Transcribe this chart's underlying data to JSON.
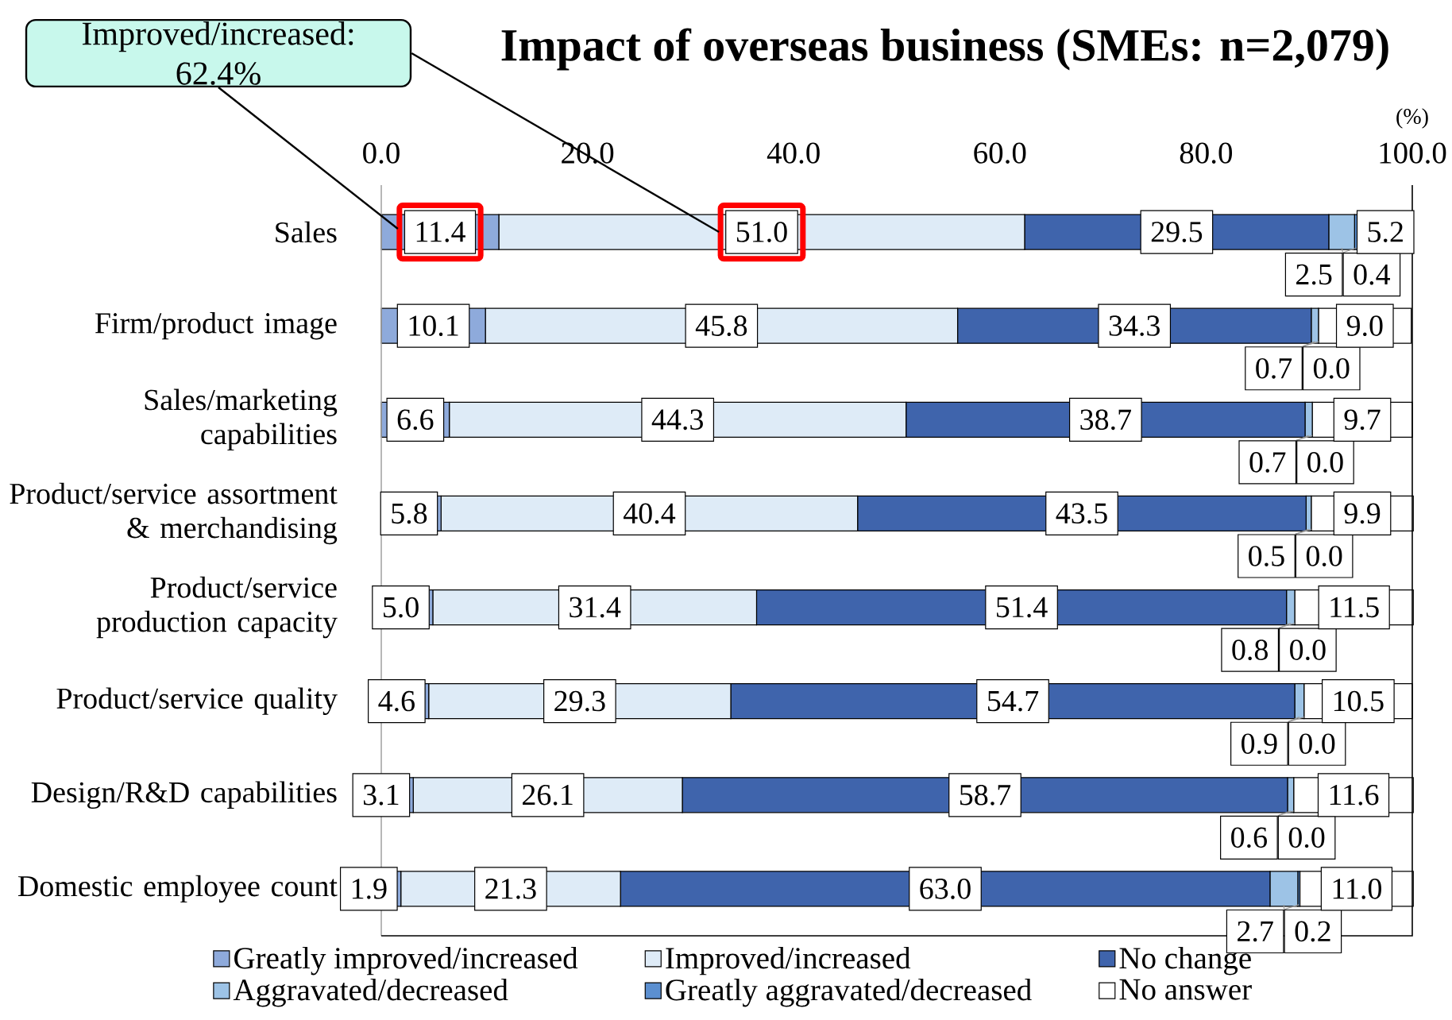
{
  "chart_data": {
    "type": "bar",
    "orientation": "horizontal",
    "stacked": true,
    "title": "Impact of overseas business (SMEs: n=2,079)",
    "xlabel": "(%)",
    "categories": [
      "Sales",
      "Firm/product image",
      "Sales/marketing capabilities",
      "Product/service assortment & merchandising",
      "Product/service production capacity",
      "Product/service quality",
      "Design/R&D capabilities",
      "Domestic employee count"
    ],
    "series": [
      {
        "name": "Greatly improved/increased",
        "color": "#8eaadb",
        "values": [
          11.4,
          10.1,
          6.6,
          5.8,
          5.0,
          4.6,
          3.1,
          1.9
        ],
        "value_labels": [
          "11.4",
          "10.1",
          "6.6",
          "5.8",
          "5.0",
          "4.6",
          "3.1",
          "1.9"
        ]
      },
      {
        "name": "Improved/increased",
        "color": "#deebf7",
        "values": [
          51.0,
          45.8,
          44.3,
          40.4,
          31.4,
          29.3,
          26.1,
          21.3
        ],
        "value_labels": [
          "51.0",
          "45.8",
          "44.3",
          "40.4",
          "31.4",
          "29.3",
          "26.1",
          "21.3"
        ]
      },
      {
        "name": "No change",
        "color": "#3f64ac",
        "values": [
          29.5,
          34.3,
          38.7,
          43.5,
          51.4,
          54.7,
          58.7,
          63.0
        ],
        "value_labels": [
          "29.5",
          "34.3",
          "38.7",
          "43.5",
          "51.4",
          "54.7",
          "58.7",
          "63.0"
        ]
      },
      {
        "name": "Aggravated/decreased",
        "color": "#9dc3e6",
        "values": [
          2.5,
          0.7,
          0.7,
          0.5,
          0.8,
          0.9,
          0.6,
          2.7
        ],
        "value_labels": [
          "2.5",
          "0.7",
          "0.7",
          "0.5",
          "0.8",
          "0.9",
          "0.6",
          "2.7"
        ]
      },
      {
        "name": "Greatly aggravated/decreased",
        "color": "#5b8fd0",
        "values": [
          0.4,
          0.0,
          0.0,
          0.0,
          0.0,
          0.0,
          0.0,
          0.2
        ],
        "value_labels": [
          "0.4",
          "0.0",
          "0.0",
          "0.0",
          "0.0",
          "0.0",
          "0.0",
          "0.2"
        ]
      },
      {
        "name": "No answer",
        "color": "#ffffff",
        "values": [
          5.2,
          9.0,
          9.7,
          9.9,
          11.5,
          10.5,
          11.6,
          11.0
        ],
        "value_labels": [
          "5.2",
          "9.0",
          "9.7",
          "9.9",
          "11.5",
          "10.5",
          "11.6",
          "11.0"
        ]
      }
    ],
    "xlim": [
      0,
      100
    ],
    "xticks": [
      {
        "value": 0,
        "label": "0.0"
      },
      {
        "value": 20,
        "label": "20.0"
      },
      {
        "value": 40,
        "label": "40.0"
      },
      {
        "value": 60,
        "label": "60.0"
      },
      {
        "value": 80,
        "label": "80.0"
      },
      {
        "value": 100,
        "label": "100.0"
      }
    ],
    "legend": "bottom",
    "annotations": [
      "Improved/increased: 62.4%"
    ]
  }
}
